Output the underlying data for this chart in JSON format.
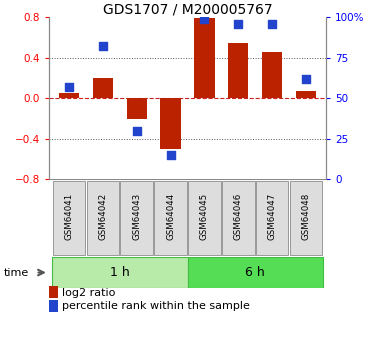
{
  "title": "GDS1707 / M200005767",
  "samples": [
    "GSM64041",
    "GSM64042",
    "GSM64043",
    "GSM64044",
    "GSM64045",
    "GSM64046",
    "GSM64047",
    "GSM64048"
  ],
  "log2_ratio": [
    0.05,
    0.2,
    -0.2,
    -0.5,
    0.79,
    0.55,
    0.46,
    0.07
  ],
  "percentile_rank": [
    57,
    82,
    30,
    15,
    99,
    96,
    96,
    62
  ],
  "groups": [
    {
      "label": "1 h",
      "start": 0,
      "end": 4,
      "color": "#b8eaaa"
    },
    {
      "label": "6 h",
      "start": 4,
      "end": 8,
      "color": "#55dd55"
    }
  ],
  "ylim_left": [
    -0.8,
    0.8
  ],
  "ylim_right": [
    0,
    100
  ],
  "yticks_left": [
    -0.8,
    -0.4,
    0.0,
    0.4,
    0.8
  ],
  "yticks_right": [
    0,
    25,
    50,
    75,
    100
  ],
  "ytick_labels_right": [
    "0",
    "25",
    "50",
    "75",
    "100%"
  ],
  "bar_color": "#bb2200",
  "dot_color": "#2244cc",
  "hline_color": "#cc2222",
  "dot_hline_color": "#aaaaaa",
  "bg_color": "#ffffff",
  "sample_box_color": "#dddddd",
  "sample_box_edge": "#999999",
  "legend_labels": [
    "log2 ratio",
    "percentile rank within the sample"
  ],
  "time_label": "time"
}
